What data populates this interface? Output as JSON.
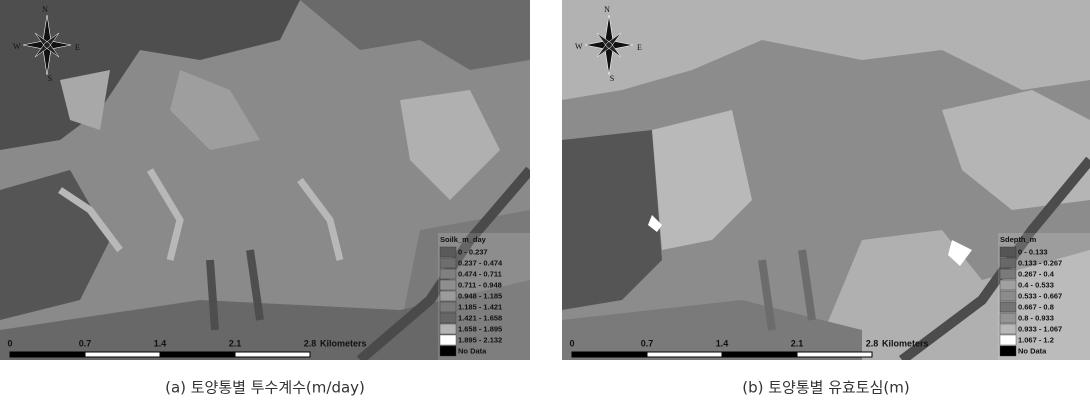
{
  "panels": [
    {
      "compass": {
        "n": "N",
        "s": "S",
        "e": "E",
        "w": "W"
      },
      "scale": {
        "labels": [
          "0",
          "0.7",
          "1.4",
          "2.1",
          "2.8"
        ],
        "unit": "Kilometers"
      },
      "legend": {
        "title": "Soilk_m_day",
        "entries": [
          {
            "label": "0 - 0.237",
            "color": "#5a5a5a"
          },
          {
            "label": "0.237 - 0.474",
            "color": "#6e6e6e"
          },
          {
            "label": "0.474 - 0.711",
            "color": "#808080"
          },
          {
            "label": "0.711 - 0.948",
            "color": "#8f8f8f"
          },
          {
            "label": "0.948 - 1.185",
            "color": "#9c9c9c"
          },
          {
            "label": "1.185 - 1.421",
            "color": "#7a7a7a"
          },
          {
            "label": "1.421 - 1.658",
            "color": "#666666"
          },
          {
            "label": "1.658 - 1.895",
            "color": "#b4b4b4"
          },
          {
            "label": "1.895 - 2.132",
            "color": "#ffffff"
          },
          {
            "label": "No Data",
            "color": "#000000"
          }
        ]
      },
      "caption": "(a) 토양통별 투수계수(m/day)"
    },
    {
      "compass": {
        "n": "N",
        "s": "S",
        "e": "E",
        "w": "W"
      },
      "scale": {
        "labels": [
          "0",
          "0.7",
          "1.4",
          "2.1",
          "2.8"
        ],
        "unit": "Kilometers"
      },
      "legend": {
        "title": "Sdepth_m",
        "entries": [
          {
            "label": "0 - 0.133",
            "color": "#555555"
          },
          {
            "label": "0.133 - 0.267",
            "color": "#686868"
          },
          {
            "label": "0.267 - 0.4",
            "color": "#7a7a7a"
          },
          {
            "label": "0.4 - 0.533",
            "color": "#a0a0a0"
          },
          {
            "label": "0.533 - 0.667",
            "color": "#8c8c8c"
          },
          {
            "label": "0.667 - 0.8",
            "color": "#747474"
          },
          {
            "label": "0.8 - 0.933",
            "color": "#949494"
          },
          {
            "label": "0.933 - 1.067",
            "color": "#b8b8b8"
          },
          {
            "label": "1.067 - 1.2",
            "color": "#ffffff"
          },
          {
            "label": "No Data",
            "color": "#000000"
          }
        ]
      },
      "caption": "(b) 토양통별 유효토심(m)"
    }
  ]
}
